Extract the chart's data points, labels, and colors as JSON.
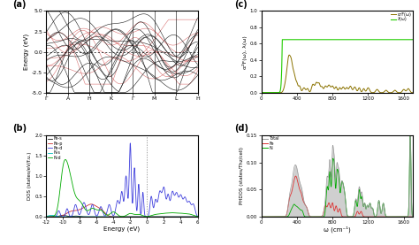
{
  "panel_labels": [
    "(a)",
    "(b)",
    "(c)",
    "(d)"
  ],
  "band_structure": {
    "kpoints": [
      "Γ",
      "A",
      "H",
      "K",
      "Γ",
      "M",
      "L",
      "H"
    ],
    "kpoint_positions": [
      0,
      1,
      2,
      3,
      4,
      5,
      6,
      7
    ],
    "ylim": [
      -5.0,
      5.0
    ],
    "yticks": [
      -5.0,
      -2.5,
      0.0,
      2.5,
      5.0
    ],
    "ylabel": "Energy (eV)",
    "band_color_dark": "#1a1a1a",
    "band_color_red": "#cc4444"
  },
  "dos": {
    "xlim": [
      -12,
      6
    ],
    "ylim": [
      0,
      2.0
    ],
    "xticks": [
      -12,
      -10,
      -8,
      -6,
      -4,
      -2,
      0,
      2,
      4,
      6
    ],
    "yticks": [
      0.0,
      0.5,
      1.0,
      1.5,
      2.0
    ],
    "xlabel": "Energy (eV)",
    "ylabel": "DOS (states/eV/f.u.)",
    "legend": [
      "Fe-s",
      "Fe-p",
      "Fe-d",
      "N-s",
      "N-d"
    ],
    "colors": [
      "#1a1a1a",
      "#cc3333",
      "#4040dd",
      "#00bbbb",
      "#00aa00"
    ]
  },
  "alpha2F": {
    "xlim": [
      0,
      1700
    ],
    "ylim": [
      0,
      1.0
    ],
    "xticks": [
      0,
      400,
      800,
      1200,
      1600
    ],
    "yticks": [
      0.0,
      0.2,
      0.4,
      0.6,
      0.8,
      1.0
    ],
    "ylabel": "α²F(ω), λ(ω)",
    "legend": [
      "α²F(ω)",
      "λ(ω)"
    ],
    "colors": [
      "#8B7300",
      "#22cc00"
    ]
  },
  "phdos": {
    "xlim": [
      0,
      1700
    ],
    "ylim": [
      0,
      0.15
    ],
    "xticks": [
      0,
      400,
      800,
      1200,
      1600
    ],
    "yticks": [
      0.0,
      0.05,
      0.1,
      0.15
    ],
    "xlabel": "ω (cm⁻¹)",
    "ylabel": "PHDOS (states/Thz/cell)",
    "legend": [
      "Total",
      "Fe",
      "N"
    ],
    "colors": [
      "#bbbbbb",
      "#dd3333",
      "#00aa00"
    ]
  },
  "background": "#ffffff"
}
